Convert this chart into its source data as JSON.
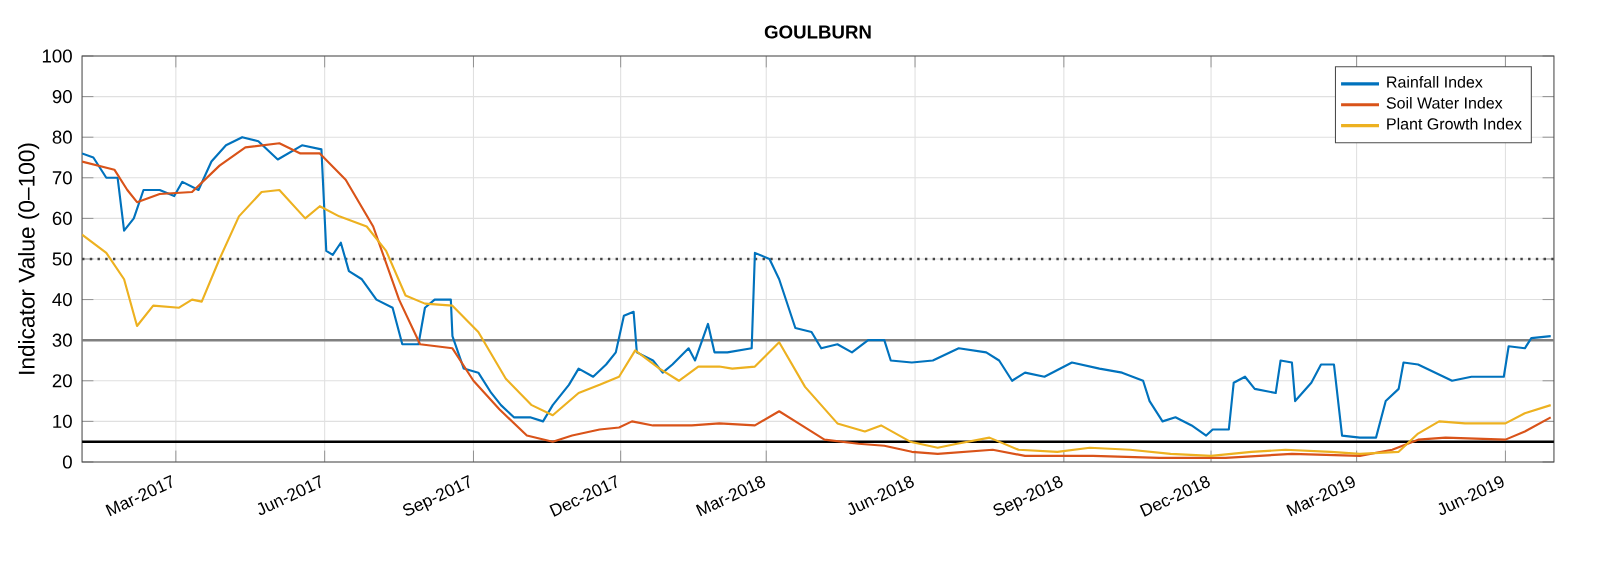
{
  "chart_data": {
    "type": "line",
    "title": "GOULBURN",
    "ylabel": "Indicator Value (0–100)",
    "xlim": [
      "2017-01-02",
      "2019-07-01"
    ],
    "xticks": [
      {
        "value": "2017-03-01",
        "label": "Mar-2017"
      },
      {
        "value": "2017-06-01",
        "label": "Jun-2017"
      },
      {
        "value": "2017-09-01",
        "label": "Sep-2017"
      },
      {
        "value": "2017-12-01",
        "label": "Dec-2017"
      },
      {
        "value": "2018-03-01",
        "label": "Mar-2018"
      },
      {
        "value": "2018-06-01",
        "label": "Jun-2018"
      },
      {
        "value": "2018-09-01",
        "label": "Sep-2018"
      },
      {
        "value": "2018-12-01",
        "label": "Dec-2018"
      },
      {
        "value": "2019-03-01",
        "label": "Mar-2019"
      },
      {
        "value": "2019-06-01",
        "label": "Jun-2019"
      }
    ],
    "ylim": [
      0,
      100
    ],
    "yticks": [
      0,
      10,
      20,
      30,
      40,
      50,
      60,
      70,
      80,
      90,
      100
    ],
    "grid": true,
    "legend": "top right",
    "marker": "none",
    "line_style": "solid",
    "ref_lines": [
      {
        "axis": "y",
        "value": 50,
        "color": "#444444",
        "line_style": "dotted"
      },
      {
        "axis": "y",
        "value": 30,
        "color": "#808080",
        "line_style": "solid"
      },
      {
        "axis": "y",
        "value": 5,
        "color": "#000000",
        "line_style": "solid"
      }
    ],
    "series": [
      {
        "name": "Rainfall Index",
        "color": "#0072bd",
        "x": [
          "2017-01-02",
          "2017-01-09",
          "2017-01-17",
          "2017-01-24",
          "2017-01-28",
          "2017-02-03",
          "2017-02-09",
          "2017-02-19",
          "2017-02-28",
          "2017-03-05",
          "2017-03-15",
          "2017-03-23",
          "2017-04-01",
          "2017-04-11",
          "2017-04-21",
          "2017-05-03",
          "2017-05-18",
          "2017-05-30",
          "2017-06-02",
          "2017-06-06",
          "2017-06-11",
          "2017-06-16",
          "2017-06-24",
          "2017-07-03",
          "2017-07-13",
          "2017-07-19",
          "2017-07-29",
          "2017-08-02",
          "2017-08-08",
          "2017-08-18",
          "2017-08-19",
          "2017-08-26",
          "2017-09-04",
          "2017-09-12",
          "2017-09-18",
          "2017-09-26",
          "2017-10-06",
          "2017-10-14",
          "2017-10-20",
          "2017-10-30",
          "2017-11-05",
          "2017-11-14",
          "2017-11-22",
          "2017-11-28",
          "2017-12-03",
          "2017-12-09",
          "2017-12-11",
          "2017-12-21",
          "2017-12-27",
          "2018-01-02",
          "2018-01-12",
          "2018-01-16",
          "2018-01-24",
          "2018-01-28",
          "2018-02-05",
          "2018-02-20",
          "2018-02-22",
          "2018-03-03",
          "2018-03-09",
          "2018-03-19",
          "2018-03-29",
          "2018-04-04",
          "2018-04-14",
          "2018-04-23",
          "2018-05-03",
          "2018-05-13",
          "2018-05-17",
          "2018-05-30",
          "2018-06-12",
          "2018-06-28",
          "2018-07-15",
          "2018-07-23",
          "2018-07-31",
          "2018-08-08",
          "2018-08-20",
          "2018-09-06",
          "2018-09-23",
          "2018-10-07",
          "2018-10-20",
          "2018-10-24",
          "2018-11-01",
          "2018-11-09",
          "2018-11-19",
          "2018-11-28",
          "2018-12-02",
          "2018-12-12",
          "2018-12-15",
          "2018-12-22",
          "2018-12-28",
          "2019-01-10",
          "2019-01-13",
          "2019-01-20",
          "2019-01-22",
          "2019-02-01",
          "2019-02-07",
          "2019-02-15",
          "2019-02-20",
          "2019-03-03",
          "2019-03-13",
          "2019-03-19",
          "2019-03-27",
          "2019-03-30",
          "2019-04-08",
          "2019-04-29",
          "2019-05-11",
          "2019-05-31",
          "2019-06-03",
          "2019-06-13",
          "2019-06-17",
          "2019-06-29"
        ],
        "values": [
          76,
          75,
          70,
          70,
          57,
          60,
          67,
          67,
          65.5,
          69,
          67,
          74,
          78,
          80,
          79,
          74.5,
          78,
          77,
          52,
          51,
          54,
          47,
          45,
          40,
          38,
          29,
          29,
          38,
          40,
          40,
          31,
          23,
          22,
          17,
          14,
          11,
          11,
          10,
          14,
          19,
          23,
          21,
          24,
          27,
          36,
          37,
          27,
          25,
          22,
          24,
          28,
          25,
          34,
          27,
          27,
          28,
          51.5,
          50,
          45,
          33,
          32,
          28,
          29,
          27,
          30,
          30,
          25,
          24.5,
          25,
          28,
          27,
          25,
          20,
          22,
          21,
          24.5,
          23,
          22,
          20,
          15,
          10,
          11,
          9,
          6.5,
          8,
          8,
          19.5,
          21,
          18,
          17,
          25,
          24.5,
          15,
          19.5,
          24,
          24,
          6.5,
          6,
          6,
          15,
          18,
          24.5,
          24,
          20,
          21,
          21,
          28.5,
          28,
          30.5,
          31
        ]
      },
      {
        "name": "Soil Water Index",
        "color": "#d95319",
        "x": [
          "2017-01-02",
          "2017-01-22",
          "2017-01-30",
          "2017-02-05",
          "2017-02-19",
          "2017-03-11",
          "2017-03-28",
          "2017-04-13",
          "2017-05-04",
          "2017-05-17",
          "2017-05-29",
          "2017-06-14",
          "2017-07-01",
          "2017-07-17",
          "2017-07-30",
          "2017-08-19",
          "2017-09-01",
          "2017-09-17",
          "2017-10-04",
          "2017-10-20",
          "2017-11-01",
          "2017-11-18",
          "2017-11-30",
          "2017-12-08",
          "2017-12-21",
          "2018-01-14",
          "2018-01-31",
          "2018-02-22",
          "2018-03-09",
          "2018-03-21",
          "2018-04-06",
          "2018-04-27",
          "2018-05-13",
          "2018-05-30",
          "2018-06-15",
          "2018-07-19",
          "2018-08-08",
          "2018-09-19",
          "2018-10-30",
          "2018-12-10",
          "2019-01-20",
          "2019-03-03",
          "2019-03-23",
          "2019-04-08",
          "2019-04-25",
          "2019-06-01",
          "2019-06-13",
          "2019-06-29"
        ],
        "values": [
          74,
          72,
          67,
          64,
          66,
          66.5,
          73,
          77.5,
          78.5,
          76,
          76,
          69.5,
          58,
          40,
          29,
          28,
          20,
          13,
          6.5,
          5,
          6.5,
          8,
          8.5,
          10,
          9,
          9,
          9.5,
          9,
          12.5,
          9.5,
          5.5,
          4.5,
          4,
          2.5,
          2,
          3,
          1.5,
          1.5,
          1,
          1,
          2,
          1.5,
          3,
          5.5,
          6,
          5.5,
          7.5,
          11
        ]
      },
      {
        "name": "Plant Growth Index",
        "color": "#edb120",
        "x": [
          "2017-01-02",
          "2017-01-17",
          "2017-01-28",
          "2017-02-05",
          "2017-02-15",
          "2017-03-03",
          "2017-03-11",
          "2017-03-17",
          "2017-03-28",
          "2017-04-09",
          "2017-04-23",
          "2017-05-04",
          "2017-05-20",
          "2017-05-29",
          "2017-06-10",
          "2017-06-27",
          "2017-07-09",
          "2017-07-21",
          "2017-08-02",
          "2017-08-19",
          "2017-09-04",
          "2017-09-21",
          "2017-10-07",
          "2017-10-20",
          "2017-11-05",
          "2017-11-18",
          "2017-11-30",
          "2017-12-10",
          "2017-12-25",
          "2018-01-06",
          "2018-01-18",
          "2018-01-31",
          "2018-02-08",
          "2018-02-22",
          "2018-03-09",
          "2018-03-25",
          "2018-04-14",
          "2018-05-01",
          "2018-05-11",
          "2018-05-29",
          "2018-06-15",
          "2018-06-27",
          "2018-07-17",
          "2018-08-04",
          "2018-08-28",
          "2018-09-17",
          "2018-10-12",
          "2018-11-06",
          "2018-12-01",
          "2018-12-26",
          "2019-01-16",
          "2019-02-13",
          "2019-03-03",
          "2019-03-27",
          "2019-04-08",
          "2019-04-21",
          "2019-05-07",
          "2019-06-01",
          "2019-06-13",
          "2019-06-29"
        ],
        "values": [
          56,
          51.5,
          45,
          33.5,
          38.5,
          38,
          40,
          39.5,
          50,
          60.5,
          66.5,
          67,
          60,
          63,
          60.5,
          58,
          52,
          41,
          39,
          38.5,
          32,
          20.5,
          14,
          11.5,
          17,
          19,
          21,
          27.5,
          23,
          20,
          23.5,
          23.5,
          23,
          23.5,
          29.5,
          18.5,
          9.5,
          7.5,
          9,
          5,
          3.5,
          4.5,
          6,
          3,
          2.5,
          3.5,
          3,
          2,
          1.5,
          2.5,
          3,
          2.5,
          2,
          2.5,
          7,
          10,
          9.5,
          9.5,
          12,
          14
        ]
      }
    ]
  }
}
